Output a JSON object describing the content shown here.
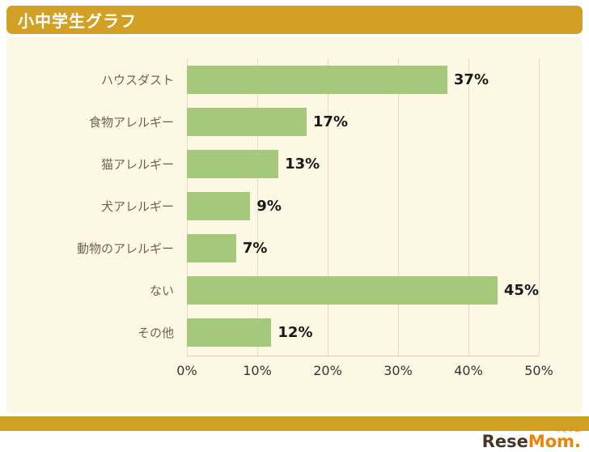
{
  "header": {
    "title": "小中学生グラフ"
  },
  "colors": {
    "accent": "#d2a024",
    "panel_background": "#fcf8e4",
    "bar": "#a5c97b",
    "gridline": "#e4dcc0",
    "logo_orange": "#ef8200"
  },
  "logo": {
    "text_primary": "Rese",
    "text_secondary": "Mom.",
    "subtext": "リセマム"
  },
  "chart_data": {
    "type": "bar",
    "orientation": "horizontal",
    "title": "小中学生グラフ",
    "categories": [
      "ハウスダスト",
      "食物アレルギー",
      "猫アレルギー",
      "犬アレルギー",
      "動物のアレルギー",
      "ない",
      "その他"
    ],
    "values": [
      37,
      17,
      13,
      9,
      7,
      45,
      12
    ],
    "value_labels": [
      "37%",
      "17%",
      "13%",
      "9%",
      "7%",
      "45%",
      "12%"
    ],
    "xlabel": "",
    "ylabel": "",
    "xlim": [
      0,
      50
    ],
    "x_ticks": [
      "0%",
      "10%",
      "20%",
      "30%",
      "40%",
      "50%"
    ],
    "grid": true,
    "legend": false
  }
}
